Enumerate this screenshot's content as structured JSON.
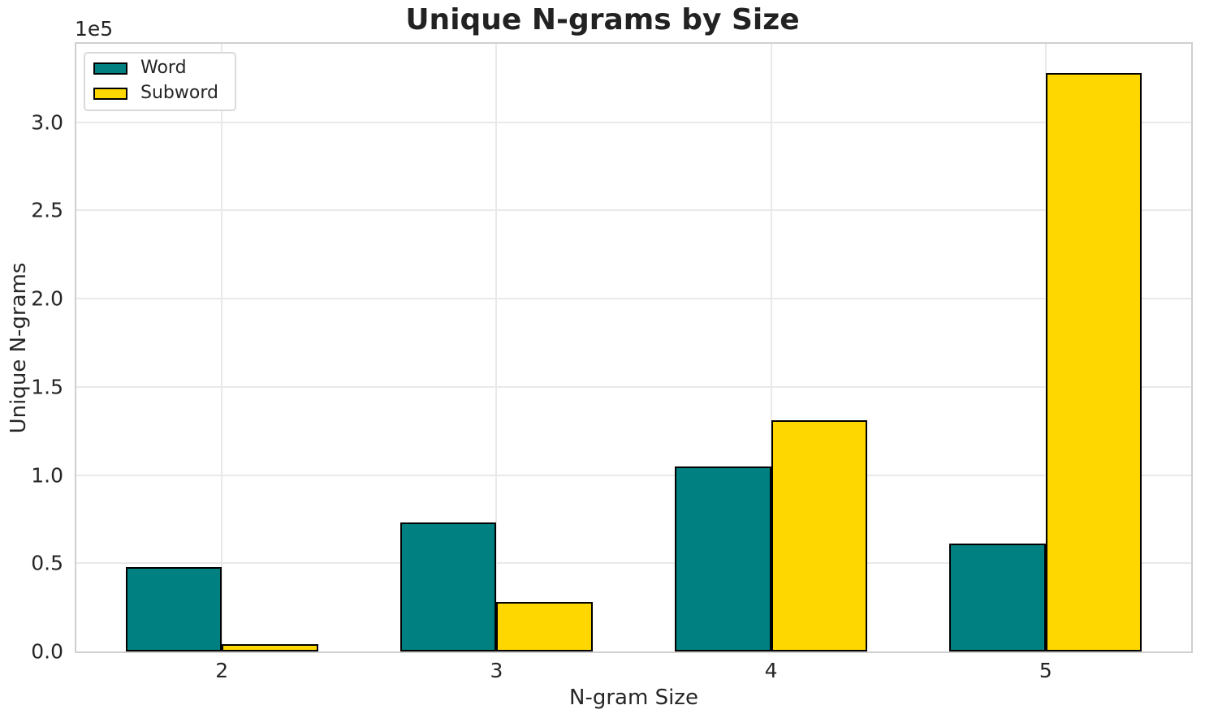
{
  "chart_data": {
    "type": "bar",
    "title": "Unique N-grams by Size",
    "xlabel": "N-gram Size",
    "ylabel": "Unique N-grams",
    "y_offset_label": "1e5",
    "categories": [
      "2",
      "3",
      "4",
      "5"
    ],
    "series": [
      {
        "name": "Word",
        "color": "#008080",
        "values": [
          48000,
          73000,
          105000,
          61000
        ]
      },
      {
        "name": "Subword",
        "color": "#FFD700",
        "values": [
          4000,
          28000,
          131000,
          328000
        ]
      }
    ],
    "bar_width": 0.35,
    "bar_edge_color": "#000000",
    "xlim": [
      -0.53,
      3.53
    ],
    "ylim": [
      0,
      344400
    ],
    "yticks": [
      {
        "value": 0,
        "label": "0.0"
      },
      {
        "value": 50000,
        "label": "0.5"
      },
      {
        "value": 100000,
        "label": "1.0"
      },
      {
        "value": 150000,
        "label": "1.5"
      },
      {
        "value": 200000,
        "label": "2.0"
      },
      {
        "value": 250000,
        "label": "2.5"
      },
      {
        "value": 300000,
        "label": "3.0"
      }
    ],
    "grid": true,
    "legend_position": "upper left",
    "grid_color": "#e9e9e9",
    "spine_color": "#cfcfcf",
    "background": "#ffffff"
  }
}
